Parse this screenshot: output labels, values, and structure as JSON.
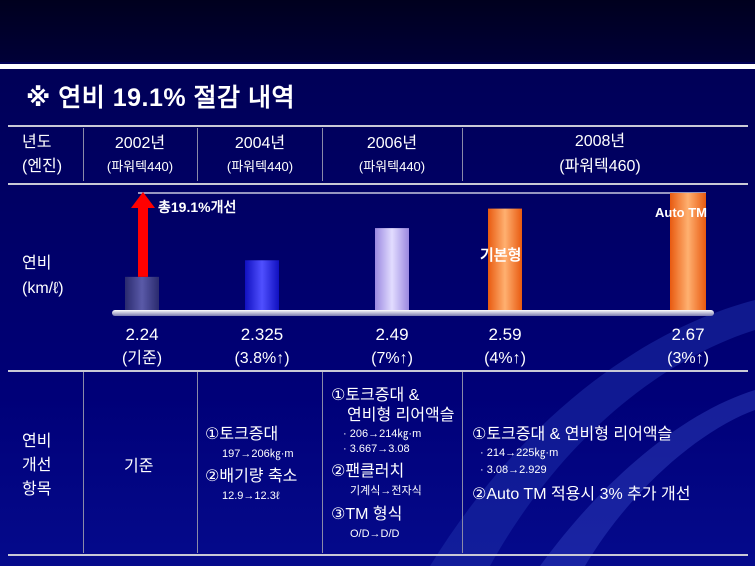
{
  "title": "※ 연비 19.1% 절감 내역",
  "header": {
    "year_label": "년도",
    "engine_label": "(엔진)",
    "fuel_label": "연비",
    "fuel_unit": "(km/ℓ)",
    "improve_label_1": "연비",
    "improve_label_2": "개선",
    "improve_label_3": "항목"
  },
  "columns": [
    {
      "year": "2002년",
      "engine": "(파워텍440)"
    },
    {
      "year": "2004년",
      "engine": "(파워텍440)"
    },
    {
      "year": "2006년",
      "engine": "(파워텍440)"
    },
    {
      "year": "2008년",
      "engine": "(파워텍460)"
    }
  ],
  "chart_data": {
    "type": "bar",
    "categories": [
      "2002년",
      "2004년",
      "2006년",
      "2008년 기본형",
      "2008년 Auto TM"
    ],
    "values": [
      2.24,
      2.325,
      2.49,
      2.59,
      2.67
    ],
    "value_labels": [
      "2.24",
      "2.325",
      "2.49",
      "2.59",
      "2.67"
    ],
    "change_labels": [
      "(기준)",
      "(3.8%↑)",
      "(7%↑)",
      "(4%↑)",
      "(3%↑)"
    ],
    "ylim": [
      2.07,
      2.67
    ],
    "annotations": {
      "total_arrow": "총19.1%개선",
      "basic": "기본형",
      "auto_tm": "Auto TM"
    },
    "colors": [
      "#3d3d8f",
      "#2a2aff",
      "#b8a8f0",
      "#ff7a2a",
      "#ff7a2a"
    ]
  },
  "improvements": {
    "col1": {
      "text": "기준"
    },
    "col2": {
      "item1": "①토크증대",
      "item1_detail": "197→206㎏·m",
      "item2": "②배기량 축소",
      "item2_detail": "12.9→12.3ℓ"
    },
    "col3": {
      "item1_a": "①토크증대 &",
      "item1_b": "연비형 리어액슬",
      "item1_detail_a": "· 206→214㎏·m",
      "item1_detail_b": "· 3.667→3.08",
      "item2": "②팬클러치",
      "item2_detail": "기계식→전자식",
      "item3": "③TM 형식",
      "item3_detail": "O/D→D/D"
    },
    "col4": {
      "item1": "①토크증대 & 연비형 리어액슬",
      "item1_detail_a": "· 214→225㎏·m",
      "item1_detail_b": "· 3.08→2.929",
      "item2": "②Auto TM 적용시 3% 추가 개선"
    }
  }
}
